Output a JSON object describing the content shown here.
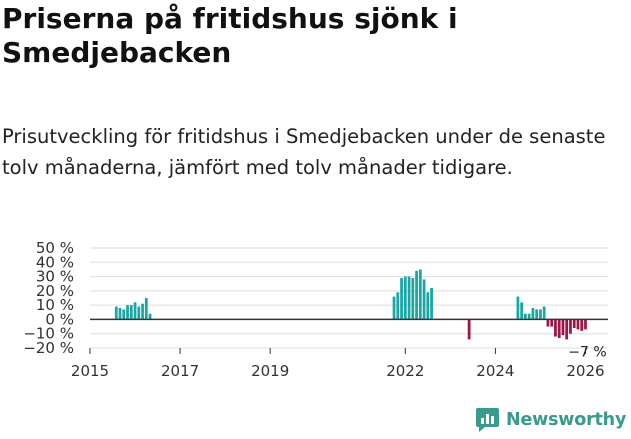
{
  "title": "Priserna på fritidshus sjönk i Smedjebacken",
  "subtitle": "Prisutveckling för fritidshus i Smedjebacken under de senaste tolv månaderna, jämfört med tolv månader tidigare.",
  "brand": {
    "name": "Newsworthy",
    "color": "#3a9a8c"
  },
  "colors": {
    "positive": "#1aa7a3",
    "negative": "#9c1547",
    "zero_line": "#333333",
    "grid": "#dddddd"
  },
  "chart_data": {
    "type": "bar",
    "title": "",
    "xlabel": "",
    "ylabel": "",
    "ylim": [
      -20,
      50
    ],
    "xlim": [
      "2015-01",
      "2026-07"
    ],
    "grid": true,
    "legend": "none",
    "y_ticks": [
      {
        "value": 50,
        "label": "50 %"
      },
      {
        "value": 40,
        "label": "40 %"
      },
      {
        "value": 30,
        "label": "30 %"
      },
      {
        "value": 20,
        "label": "20 %"
      },
      {
        "value": 10,
        "label": "10 %"
      },
      {
        "value": 0,
        "label": "0 %"
      },
      {
        "value": -10,
        "label": "−10 %"
      },
      {
        "value": -20,
        "label": "−20 %"
      }
    ],
    "x_ticks": [
      {
        "date": "2015-01",
        "label": "2015"
      },
      {
        "date": "2017-01",
        "label": "2017"
      },
      {
        "date": "2019-01",
        "label": "2019"
      },
      {
        "date": "2022-01",
        "label": "2022"
      },
      {
        "date": "2024-01",
        "label": "2024"
      },
      {
        "date": "2026-01",
        "label": "2026"
      }
    ],
    "annotation": {
      "date": "2026-01",
      "value": -7,
      "label": "−7 %"
    },
    "series": [
      {
        "points": [
          {
            "date": "2015-08",
            "value": 9
          },
          {
            "date": "2015-09",
            "value": 8
          },
          {
            "date": "2015-10",
            "value": 7
          },
          {
            "date": "2015-11",
            "value": 10
          },
          {
            "date": "2015-12",
            "value": 10
          },
          {
            "date": "2016-01",
            "value": 12
          },
          {
            "date": "2016-02",
            "value": 9
          },
          {
            "date": "2016-03",
            "value": 11
          },
          {
            "date": "2016-04",
            "value": 15
          },
          {
            "date": "2016-05",
            "value": 4
          },
          {
            "date": "2021-10",
            "value": 16
          },
          {
            "date": "2021-11",
            "value": 19
          },
          {
            "date": "2021-12",
            "value": 29
          },
          {
            "date": "2022-01",
            "value": 30
          },
          {
            "date": "2022-02",
            "value": 30
          },
          {
            "date": "2022-03",
            "value": 29
          },
          {
            "date": "2022-04",
            "value": 34
          },
          {
            "date": "2022-05",
            "value": 35
          },
          {
            "date": "2022-06",
            "value": 28
          },
          {
            "date": "2022-07",
            "value": 19
          },
          {
            "date": "2022-08",
            "value": 22
          },
          {
            "date": "2023-06",
            "value": -14
          },
          {
            "date": "2024-07",
            "value": 16
          },
          {
            "date": "2024-08",
            "value": 12
          },
          {
            "date": "2024-09",
            "value": 4
          },
          {
            "date": "2024-10",
            "value": 4
          },
          {
            "date": "2024-11",
            "value": 8
          },
          {
            "date": "2024-12",
            "value": 7
          },
          {
            "date": "2025-01",
            "value": 7
          },
          {
            "date": "2025-02",
            "value": 9
          },
          {
            "date": "2025-03",
            "value": -5
          },
          {
            "date": "2025-04",
            "value": -5
          },
          {
            "date": "2025-05",
            "value": -12
          },
          {
            "date": "2025-06",
            "value": -13
          },
          {
            "date": "2025-07",
            "value": -11
          },
          {
            "date": "2025-08",
            "value": -14
          },
          {
            "date": "2025-09",
            "value": -10
          },
          {
            "date": "2025-10",
            "value": -6
          },
          {
            "date": "2025-11",
            "value": -7
          },
          {
            "date": "2025-12",
            "value": -8
          },
          {
            "date": "2026-01",
            "value": -7
          }
        ]
      }
    ]
  }
}
